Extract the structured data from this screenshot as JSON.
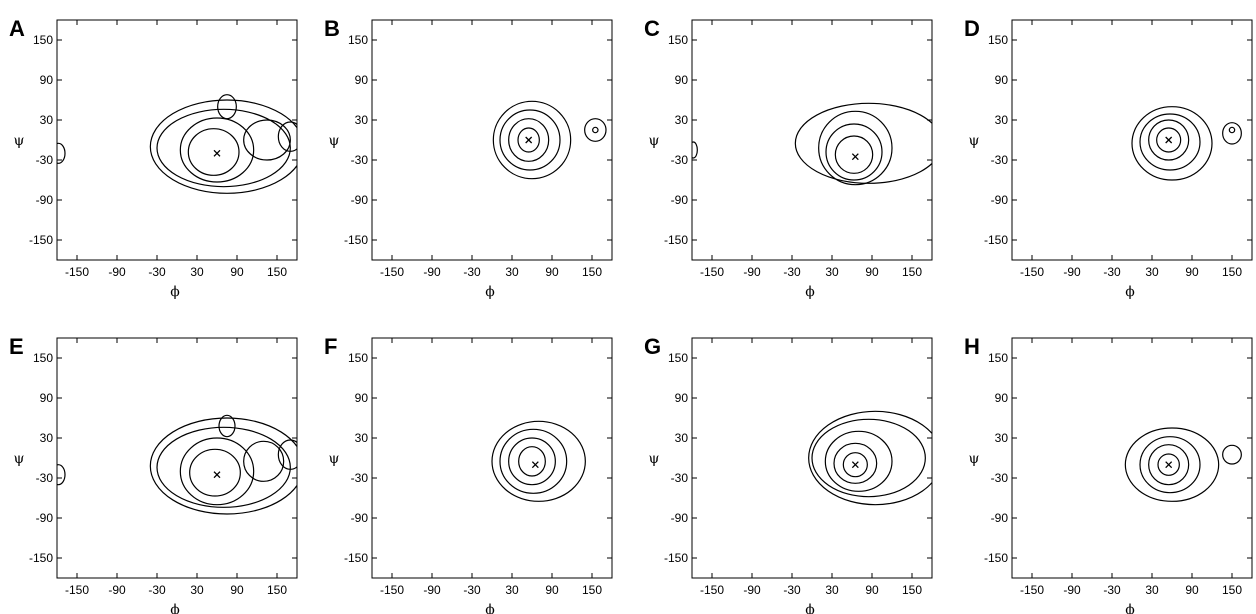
{
  "chart_data": [
    {
      "panel": "A",
      "type": "contour",
      "xlabel": "ϕ",
      "ylabel": "ψ",
      "xlim": [
        -180,
        180
      ],
      "ylim": [
        -180,
        180
      ],
      "xticks": [
        -150,
        -90,
        -30,
        30,
        90,
        150
      ],
      "yticks": [
        150,
        90,
        30,
        -30,
        -90,
        -150
      ],
      "minimum": {
        "x": 60,
        "y": -20
      },
      "contours": [
        {
          "cx": 75,
          "cy": -10,
          "rx": 115,
          "ry": 70,
          "rot": 0
        },
        {
          "cx": 70,
          "cy": -12,
          "rx": 100,
          "ry": 58,
          "rot": 0
        },
        {
          "cx": 60,
          "cy": -15,
          "rx": 55,
          "ry": 48,
          "rot": 0
        },
        {
          "cx": 55,
          "cy": -18,
          "rx": 38,
          "ry": 35,
          "rot": 0
        },
        {
          "cx": 135,
          "cy": 0,
          "rx": 35,
          "ry": 30,
          "rot": 0
        },
        {
          "cx": 170,
          "cy": 5,
          "rx": 18,
          "ry": 22,
          "rot": 0
        },
        {
          "cx": 75,
          "cy": 50,
          "rx": 14,
          "ry": 18,
          "rot": 0
        },
        {
          "cx": -178,
          "cy": -20,
          "rx": 10,
          "ry": 15,
          "rot": 0
        }
      ]
    },
    {
      "panel": "B",
      "type": "contour",
      "xlabel": "ϕ",
      "ylabel": "ψ",
      "xlim": [
        -180,
        180
      ],
      "ylim": [
        -180,
        180
      ],
      "xticks": [
        -150,
        -90,
        -30,
        30,
        90,
        150
      ],
      "yticks": [
        150,
        90,
        30,
        -30,
        -90,
        -150
      ],
      "minimum": {
        "x": 55,
        "y": 0
      },
      "contours": [
        {
          "cx": 60,
          "cy": 0,
          "rx": 58,
          "ry": 58,
          "rot": 0
        },
        {
          "cx": 57,
          "cy": 0,
          "rx": 45,
          "ry": 45,
          "rot": 0
        },
        {
          "cx": 55,
          "cy": 0,
          "rx": 30,
          "ry": 32,
          "rot": 0
        },
        {
          "cx": 55,
          "cy": 0,
          "rx": 16,
          "ry": 18,
          "rot": 0
        },
        {
          "cx": 155,
          "cy": 15,
          "rx": 16,
          "ry": 17,
          "rot": 0
        },
        {
          "cx": 155,
          "cy": 15,
          "rx": 4,
          "ry": 4,
          "rot": 0
        }
      ]
    },
    {
      "panel": "C",
      "type": "contour",
      "xlabel": "ϕ",
      "ylabel": "ψ",
      "xlim": [
        -180,
        180
      ],
      "ylim": [
        -180,
        180
      ],
      "xticks": [
        -150,
        -90,
        -30,
        30,
        90,
        150
      ],
      "yticks": [
        150,
        90,
        30,
        -30,
        -90,
        -150
      ],
      "minimum": {
        "x": 65,
        "y": -25
      },
      "contours": [
        {
          "cx": 85,
          "cy": -5,
          "rx": 110,
          "ry": 60,
          "rot": 0
        },
        {
          "cx": 65,
          "cy": -12,
          "rx": 55,
          "ry": 55,
          "rot": 0
        },
        {
          "cx": 63,
          "cy": -18,
          "rx": 42,
          "ry": 42,
          "rot": 0
        },
        {
          "cx": 63,
          "cy": -22,
          "rx": 28,
          "ry": 28,
          "rot": 0
        },
        {
          "cx": -178,
          "cy": -15,
          "rx": 6,
          "ry": 12,
          "rot": 0
        }
      ]
    },
    {
      "panel": "D",
      "type": "contour",
      "xlabel": "ϕ",
      "ylabel": "ψ",
      "xlim": [
        -180,
        180
      ],
      "ylim": [
        -180,
        180
      ],
      "xticks": [
        -150,
        -90,
        -30,
        30,
        90,
        150
      ],
      "yticks": [
        150,
        90,
        30,
        -30,
        -90,
        -150
      ],
      "minimum": {
        "x": 55,
        "y": 0
      },
      "contours": [
        {
          "cx": 60,
          "cy": -5,
          "rx": 60,
          "ry": 55,
          "rot": 0
        },
        {
          "cx": 57,
          "cy": -3,
          "rx": 45,
          "ry": 42,
          "rot": 0
        },
        {
          "cx": 55,
          "cy": 0,
          "rx": 30,
          "ry": 30,
          "rot": 0
        },
        {
          "cx": 55,
          "cy": 0,
          "rx": 18,
          "ry": 18,
          "rot": 0
        },
        {
          "cx": 150,
          "cy": 10,
          "rx": 14,
          "ry": 16,
          "rot": 0
        },
        {
          "cx": 150,
          "cy": 15,
          "rx": 4,
          "ry": 4,
          "rot": 0
        }
      ]
    },
    {
      "panel": "E",
      "type": "contour",
      "xlabel": "ϕ",
      "ylabel": "ψ",
      "xlim": [
        -180,
        180
      ],
      "ylim": [
        -180,
        180
      ],
      "xticks": [
        -150,
        -90,
        -30,
        30,
        90,
        150
      ],
      "yticks": [
        150,
        90,
        30,
        -30,
        -90,
        -150
      ],
      "minimum": {
        "x": 60,
        "y": -25
      },
      "contours": [
        {
          "cx": 75,
          "cy": -12,
          "rx": 115,
          "ry": 72,
          "rot": 0
        },
        {
          "cx": 70,
          "cy": -14,
          "rx": 100,
          "ry": 60,
          "rot": 0
        },
        {
          "cx": 60,
          "cy": -20,
          "rx": 55,
          "ry": 50,
          "rot": 0
        },
        {
          "cx": 57,
          "cy": -22,
          "rx": 38,
          "ry": 35,
          "rot": 0
        },
        {
          "cx": 130,
          "cy": -5,
          "rx": 30,
          "ry": 30,
          "rot": 0
        },
        {
          "cx": 170,
          "cy": 5,
          "rx": 18,
          "ry": 22,
          "rot": 0
        },
        {
          "cx": 75,
          "cy": 48,
          "rx": 12,
          "ry": 16,
          "rot": 0
        },
        {
          "cx": -178,
          "cy": -25,
          "rx": 10,
          "ry": 15,
          "rot": 0
        }
      ]
    },
    {
      "panel": "F",
      "type": "contour",
      "xlabel": "ϕ",
      "ylabel": "ψ",
      "xlim": [
        -180,
        180
      ],
      "ylim": [
        -180,
        180
      ],
      "xticks": [
        -150,
        -90,
        -30,
        30,
        90,
        150
      ],
      "yticks": [
        150,
        90,
        30,
        -30,
        -90,
        -150
      ],
      "minimum": {
        "x": 65,
        "y": -10
      },
      "contours": [
        {
          "cx": 70,
          "cy": -5,
          "rx": 70,
          "ry": 60,
          "rot": 0
        },
        {
          "cx": 62,
          "cy": -5,
          "rx": 50,
          "ry": 48,
          "rot": 0
        },
        {
          "cx": 60,
          "cy": -5,
          "rx": 35,
          "ry": 35,
          "rot": 0
        },
        {
          "cx": 60,
          "cy": -5,
          "rx": 20,
          "ry": 22,
          "rot": 0
        }
      ]
    },
    {
      "panel": "G",
      "type": "contour",
      "xlabel": "ϕ",
      "ylabel": "ψ",
      "xlim": [
        -180,
        180
      ],
      "ylim": [
        -180,
        180
      ],
      "xticks": [
        -150,
        -90,
        -30,
        30,
        90,
        150
      ],
      "yticks": [
        150,
        90,
        30,
        -30,
        -90,
        -150
      ],
      "minimum": {
        "x": 65,
        "y": -10
      },
      "contours": [
        {
          "cx": 95,
          "cy": 0,
          "rx": 100,
          "ry": 70,
          "rot": 0
        },
        {
          "cx": 85,
          "cy": 0,
          "rx": 85,
          "ry": 58,
          "rot": 0
        },
        {
          "cx": 70,
          "cy": -5,
          "rx": 50,
          "ry": 45,
          "rot": 0
        },
        {
          "cx": 65,
          "cy": -8,
          "rx": 32,
          "ry": 30,
          "rot": 0
        },
        {
          "cx": 65,
          "cy": -10,
          "rx": 18,
          "ry": 18,
          "rot": 0
        }
      ]
    },
    {
      "panel": "H",
      "type": "contour",
      "xlabel": "ϕ",
      "ylabel": "ψ",
      "xlim": [
        -180,
        180
      ],
      "ylim": [
        -180,
        180
      ],
      "xticks": [
        -150,
        -90,
        -30,
        30,
        90,
        150
      ],
      "yticks": [
        150,
        90,
        30,
        -30,
        -90,
        -150
      ],
      "minimum": {
        "x": 55,
        "y": -10
      },
      "contours": [
        {
          "cx": 60,
          "cy": -10,
          "rx": 70,
          "ry": 55,
          "rot": 0
        },
        {
          "cx": 57,
          "cy": -10,
          "rx": 45,
          "ry": 42,
          "rot": 0
        },
        {
          "cx": 55,
          "cy": -10,
          "rx": 30,
          "ry": 30,
          "rot": 0
        },
        {
          "cx": 55,
          "cy": -10,
          "rx": 16,
          "ry": 16,
          "rot": 0
        },
        {
          "cx": 150,
          "cy": 5,
          "rx": 14,
          "ry": 14,
          "rot": 0
        }
      ]
    }
  ]
}
